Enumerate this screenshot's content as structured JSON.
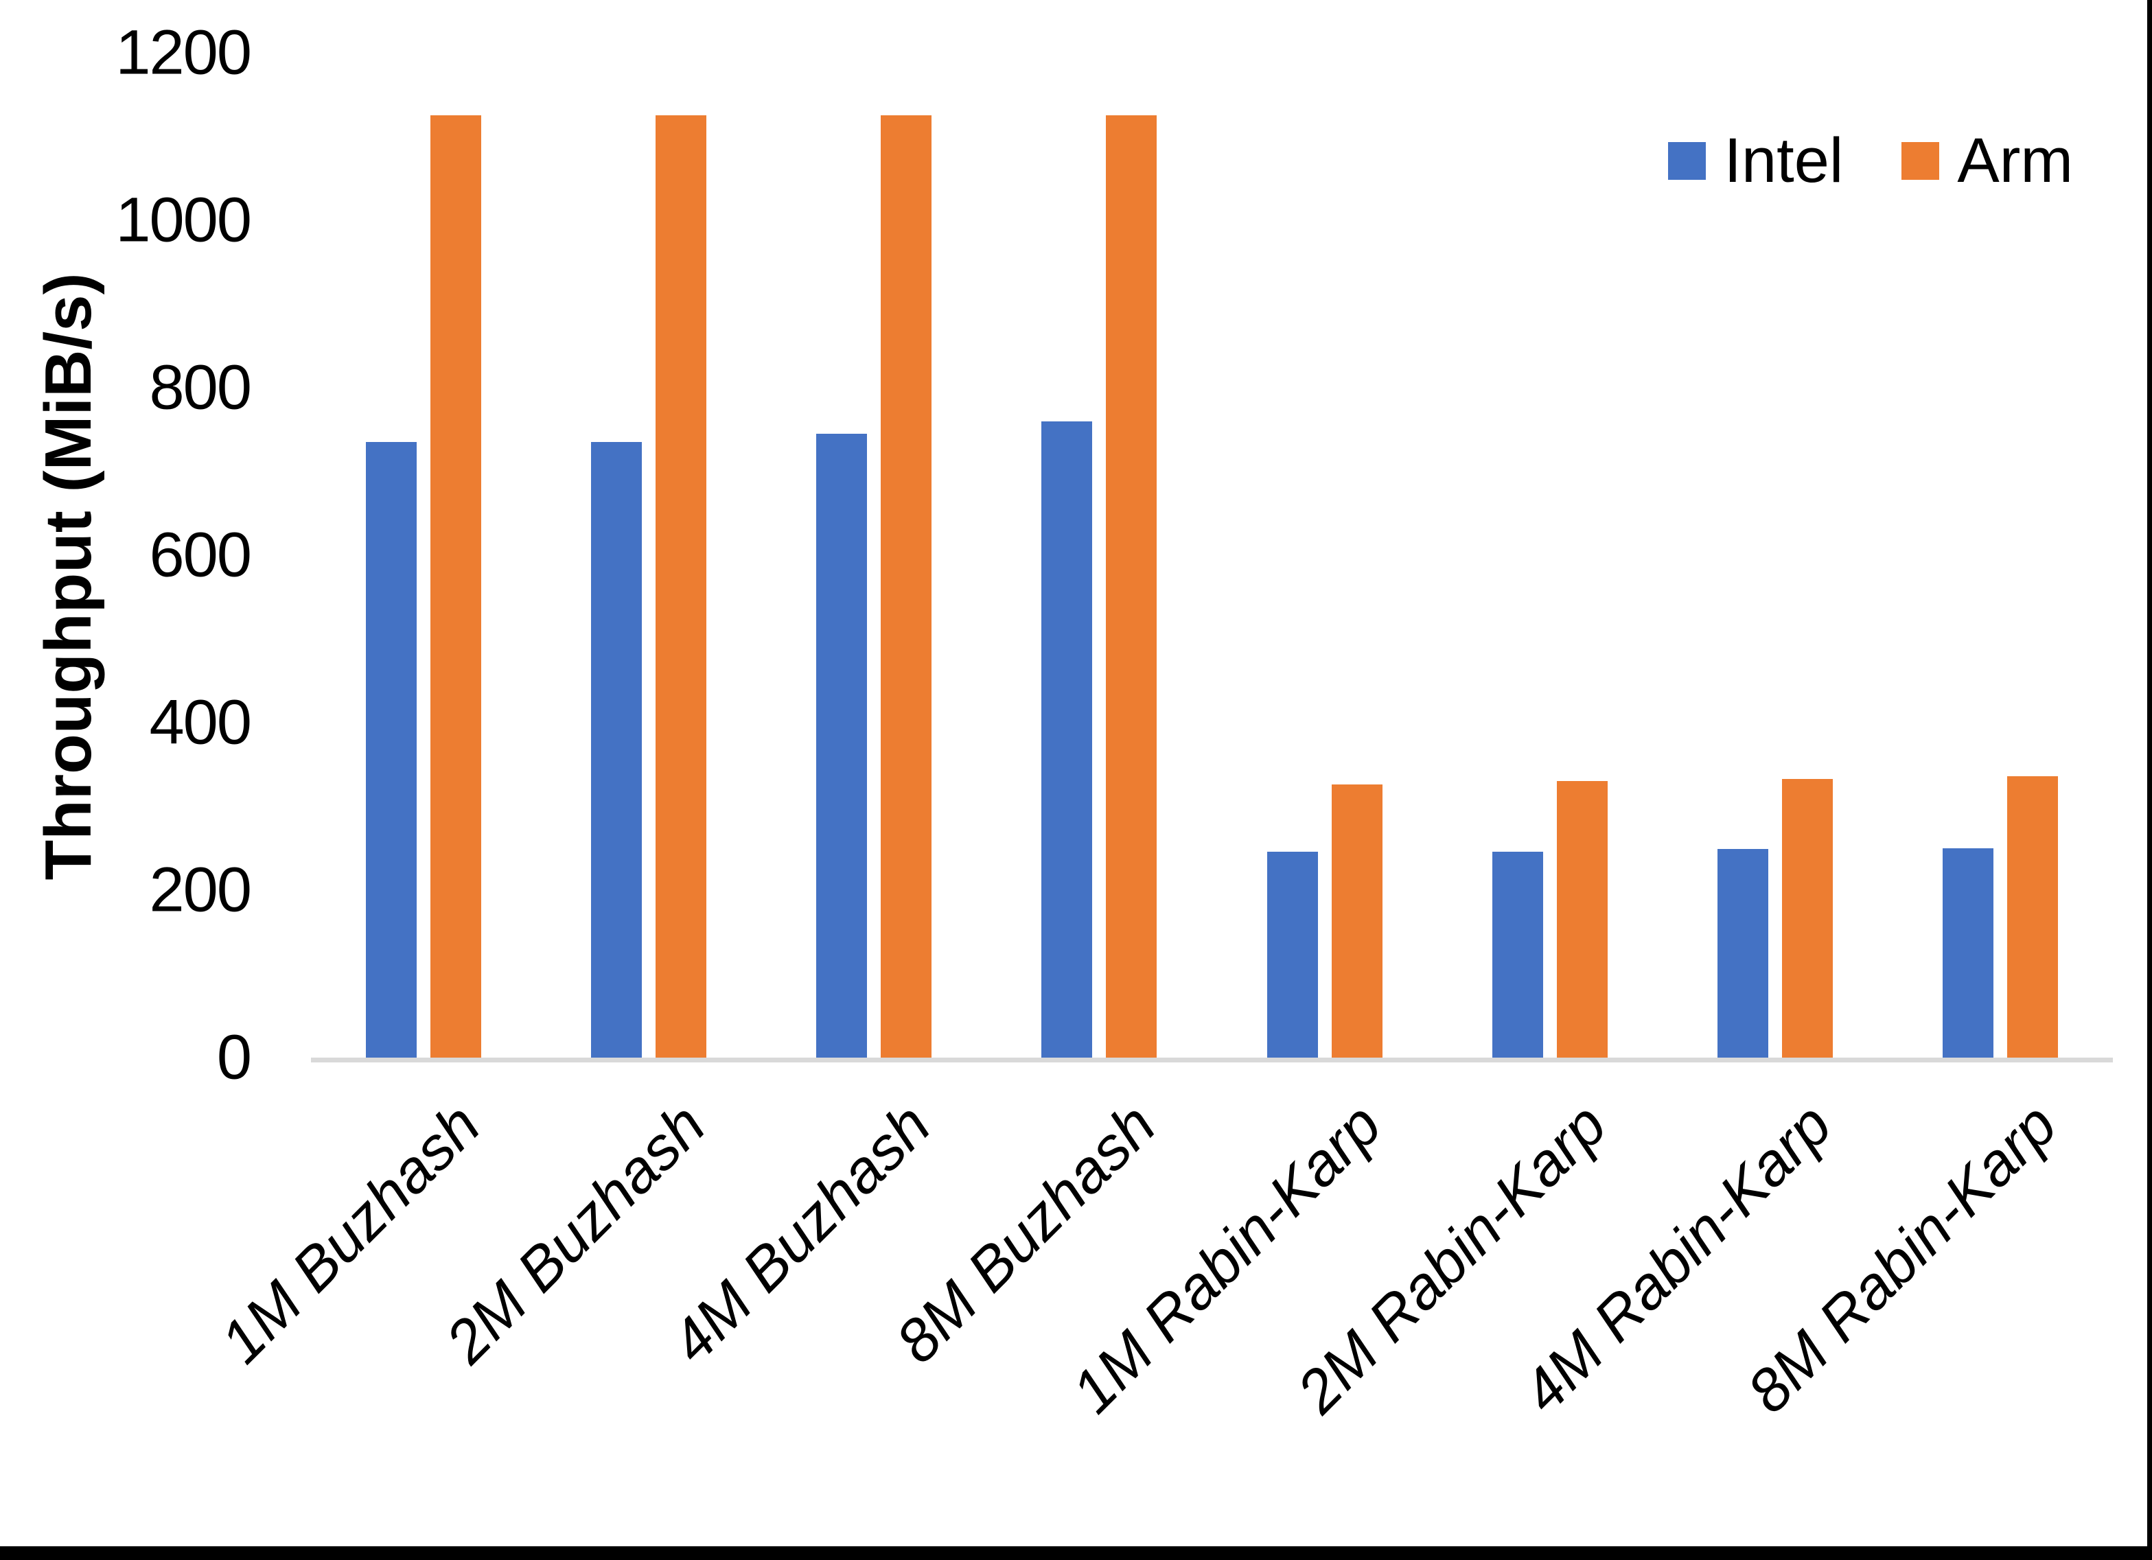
{
  "chart_data": {
    "type": "bar",
    "title": "",
    "xlabel": "",
    "ylabel": "Throughput (MiB/s)",
    "ylim": [
      0,
      1200
    ],
    "yticks": [
      0,
      200,
      400,
      600,
      800,
      1000,
      1200
    ],
    "grid": false,
    "legend_position": "top-right",
    "categories": [
      "1M Buzhash",
      "2M Buzhash",
      "4M Buzhash",
      "8M Buzhash",
      "1M Rabin-Karp",
      "2M Rabin-Karp",
      "4M Rabin-Karp",
      "8M Rabin-Karp"
    ],
    "series": [
      {
        "name": "Intel",
        "color": "#4472C4",
        "values": [
          735,
          735,
          745,
          760,
          246,
          246,
          249,
          250
        ]
      },
      {
        "name": "Arm",
        "color": "#ED7D31",
        "values": [
          1125,
          1125,
          1125,
          1125,
          326,
          330,
          333,
          336
        ]
      }
    ]
  },
  "colors": {
    "background": "#FFFFFF",
    "axis_line": "#D9D9D9",
    "text": "#000000",
    "window_edge": "#000000"
  }
}
